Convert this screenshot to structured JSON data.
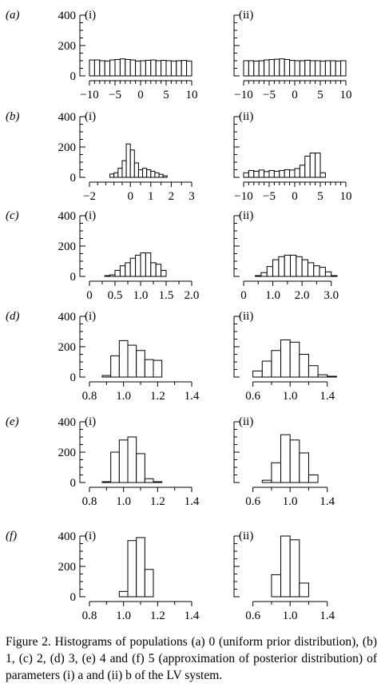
{
  "caption": "Figure 2. Histograms of populations (a) 0 (uniform prior distribution), (b) 1, (c) 2, (d) 3, (e) 4 and (f) 5 (approximation of posterior distribution) of parameters (i) a and (ii) b of the LV system.",
  "chart_data": [
    {
      "type": "bar",
      "row_label": "(a)",
      "panel_label": "(i)",
      "xlim": [
        -10,
        10
      ],
      "ylim": [
        0,
        400
      ],
      "xticks": [
        -10,
        -5,
        0,
        5,
        10
      ],
      "xtick_labels": [
        "−10",
        "−5",
        "0",
        "5",
        "10"
      ],
      "yticks": [
        0,
        200,
        400
      ],
      "ytick_labels": [
        "0",
        "200",
        "400"
      ],
      "bin_edges": [
        -10,
        -9,
        -8,
        -7,
        -6,
        -5,
        -4,
        -3,
        -2,
        -1,
        0,
        1,
        2,
        3,
        4,
        5,
        6,
        7,
        8,
        9,
        10
      ],
      "values": [
        105,
        105,
        100,
        98,
        105,
        108,
        112,
        108,
        105,
        98,
        100,
        103,
        105,
        100,
        102,
        100,
        98,
        100,
        102,
        98
      ]
    },
    {
      "type": "bar",
      "row_label": "(a)",
      "panel_label": "(ii)",
      "xlim": [
        -10,
        10
      ],
      "ylim": [
        0,
        400
      ],
      "xticks": [
        -10,
        -5,
        0,
        5,
        10
      ],
      "xtick_labels": [
        "−10",
        "−5",
        "0",
        "5",
        "10"
      ],
      "yticks": [
        0,
        200,
        400
      ],
      "ytick_labels": [
        "",
        "",
        ""
      ],
      "bin_edges": [
        -10,
        -9,
        -8,
        -7,
        -6,
        -5,
        -4,
        -3,
        -2,
        -1,
        0,
        1,
        2,
        3,
        4,
        5,
        6,
        7,
        8,
        9,
        10
      ],
      "values": [
        100,
        100,
        98,
        100,
        105,
        108,
        110,
        112,
        108,
        102,
        100,
        100,
        103,
        100,
        100,
        98,
        100,
        100,
        98,
        100
      ]
    },
    {
      "type": "bar",
      "row_label": "(b)",
      "panel_label": "(i)",
      "xlim": [
        -2,
        3
      ],
      "ylim": [
        0,
        400
      ],
      "xticks": [
        -2,
        0,
        1,
        2,
        3
      ],
      "xtick_labels": [
        "−2",
        "0",
        "1",
        "2",
        "3"
      ],
      "yticks": [
        0,
        200,
        400
      ],
      "ytick_labels": [
        "0",
        "200",
        "400"
      ],
      "bin_edges": [
        -1.0,
        -0.8,
        -0.6,
        -0.4,
        -0.2,
        0.0,
        0.2,
        0.4,
        0.6,
        0.8,
        1.0,
        1.2,
        1.4,
        1.6,
        1.8
      ],
      "values": [
        22,
        30,
        60,
        110,
        220,
        180,
        95,
        50,
        60,
        50,
        40,
        30,
        20,
        10
      ]
    },
    {
      "type": "bar",
      "row_label": "(b)",
      "panel_label": "(ii)",
      "xlim": [
        -10,
        10
      ],
      "ylim": [
        0,
        400
      ],
      "xticks": [
        -10,
        -5,
        0,
        5,
        10
      ],
      "xtick_labels": [
        "−10",
        "−5",
        "0",
        "5",
        "10"
      ],
      "yticks": [
        0,
        200,
        400
      ],
      "ytick_labels": [
        "",
        "",
        ""
      ],
      "bin_edges": [
        -10,
        -9,
        -8,
        -7,
        -6,
        -5,
        -4,
        -3,
        -2,
        -1,
        0,
        1,
        2,
        3,
        4,
        5,
        6
      ],
      "values": [
        30,
        45,
        40,
        48,
        38,
        45,
        40,
        45,
        50,
        48,
        58,
        80,
        140,
        160,
        160,
        30
      ]
    },
    {
      "type": "bar",
      "row_label": "(c)",
      "panel_label": "(i)",
      "xlim": [
        0,
        2
      ],
      "ylim": [
        0,
        400
      ],
      "xticks": [
        0,
        0.5,
        1,
        1.5,
        2
      ],
      "xtick_labels": [
        "0",
        "0.5",
        "1.0",
        "1.5",
        "2.0"
      ],
      "yticks": [
        0,
        200,
        400
      ],
      "ytick_labels": [
        "0",
        "200",
        "400"
      ],
      "bin_edges": [
        0.3,
        0.4,
        0.5,
        0.6,
        0.7,
        0.8,
        0.9,
        1.0,
        1.1,
        1.2,
        1.3,
        1.4,
        1.5
      ],
      "values": [
        5,
        10,
        40,
        70,
        90,
        120,
        140,
        155,
        155,
        90,
        80,
        40
      ]
    },
    {
      "type": "bar",
      "row_label": "(c)",
      "panel_label": "(ii)",
      "xlim": [
        0,
        3.5
      ],
      "ylim": [
        0,
        400
      ],
      "xticks": [
        0,
        1,
        2,
        3
      ],
      "xtick_labels": [
        "0",
        "1.0",
        "2.0",
        "3.0"
      ],
      "yticks": [
        0,
        200,
        400
      ],
      "ytick_labels": [
        "",
        "",
        ""
      ],
      "bin_edges": [
        0.4,
        0.6,
        0.8,
        1.0,
        1.2,
        1.4,
        1.6,
        1.8,
        2.0,
        2.2,
        2.4,
        2.6,
        2.8,
        3.0,
        3.2
      ],
      "values": [
        5,
        25,
        65,
        110,
        130,
        140,
        140,
        130,
        110,
        90,
        70,
        60,
        30,
        5
      ]
    },
    {
      "type": "bar",
      "row_label": "(d)",
      "panel_label": "(i)",
      "xlim": [
        0.8,
        1.4
      ],
      "ylim": [
        0,
        400
      ],
      "xticks": [
        0.8,
        1.0,
        1.2,
        1.4
      ],
      "xtick_labels": [
        "0.8",
        "1.0",
        "1.2",
        "1.4"
      ],
      "yticks": [
        0,
        200,
        400
      ],
      "ytick_labels": [
        "0",
        "200",
        "400"
      ],
      "bin_edges": [
        0.875,
        0.925,
        0.975,
        1.025,
        1.075,
        1.125,
        1.175,
        1.225
      ],
      "values": [
        10,
        140,
        240,
        210,
        175,
        115,
        110
      ]
    },
    {
      "type": "bar",
      "row_label": "(d)",
      "panel_label": "(ii)",
      "xlim": [
        0.5,
        1.6
      ],
      "ylim": [
        0,
        400
      ],
      "xticks": [
        0.6,
        1.0,
        1.4
      ],
      "xtick_labels": [
        "0.6",
        "1.0",
        "1.4"
      ],
      "yticks": [
        0,
        200,
        400
      ],
      "ytick_labels": [
        "",
        "",
        ""
      ],
      "bin_edges": [
        0.6,
        0.7,
        0.8,
        0.9,
        1.0,
        1.1,
        1.2,
        1.3,
        1.4,
        1.5
      ],
      "values": [
        40,
        105,
        175,
        245,
        230,
        150,
        75,
        15,
        0
      ]
    },
    {
      "type": "bar",
      "row_label": "(e)",
      "panel_label": "(i)",
      "xlim": [
        0.8,
        1.4
      ],
      "ylim": [
        0,
        400
      ],
      "xticks": [
        0.8,
        1.0,
        1.2,
        1.4
      ],
      "xtick_labels": [
        "0.8",
        "1.0",
        "1.2",
        "1.4"
      ],
      "yticks": [
        0,
        200,
        400
      ],
      "ytick_labels": [
        "0",
        "200",
        "400"
      ],
      "bin_edges": [
        0.875,
        0.925,
        0.975,
        1.025,
        1.075,
        1.125,
        1.175,
        1.225
      ],
      "values": [
        0,
        200,
        280,
        300,
        190,
        25,
        0
      ]
    },
    {
      "type": "bar",
      "row_label": "(e)",
      "panel_label": "(ii)",
      "xlim": [
        0.5,
        1.6
      ],
      "ylim": [
        0,
        400
      ],
      "xticks": [
        0.6,
        1.0,
        1.4
      ],
      "xtick_labels": [
        "0.6",
        "1.0",
        "1.4"
      ],
      "yticks": [
        0,
        200,
        400
      ],
      "ytick_labels": [
        "",
        "",
        ""
      ],
      "bin_edges": [
        0.7,
        0.8,
        0.9,
        1.0,
        1.1,
        1.2,
        1.3
      ],
      "values": [
        15,
        130,
        315,
        280,
        195,
        50
      ]
    },
    {
      "type": "bar",
      "row_label": "(f)",
      "panel_label": "(i)",
      "xlim": [
        0.8,
        1.4
      ],
      "ylim": [
        0,
        400
      ],
      "xticks": [
        0.8,
        1.0,
        1.2,
        1.4
      ],
      "xtick_labels": [
        "0.8",
        "1.0",
        "1.2",
        "1.4"
      ],
      "yticks": [
        0,
        200,
        400
      ],
      "ytick_labels": [
        "0",
        "200",
        "400"
      ],
      "bin_edges": [
        0.975,
        1.025,
        1.075,
        1.125,
        1.175
      ],
      "values": [
        35,
        370,
        390,
        180
      ]
    },
    {
      "type": "bar",
      "row_label": "(f)",
      "panel_label": "(ii)",
      "xlim": [
        0.5,
        1.6
      ],
      "ylim": [
        0,
        400
      ],
      "xticks": [
        0.6,
        1.0,
        1.4
      ],
      "xtick_labels": [
        "0.6",
        "1.0",
        "1.4"
      ],
      "yticks": [
        0,
        200,
        400
      ],
      "ytick_labels": [
        "",
        "",
        ""
      ],
      "bin_edges": [
        0.8,
        0.9,
        1.0,
        1.1,
        1.2
      ],
      "values": [
        145,
        400,
        375,
        90
      ]
    }
  ]
}
